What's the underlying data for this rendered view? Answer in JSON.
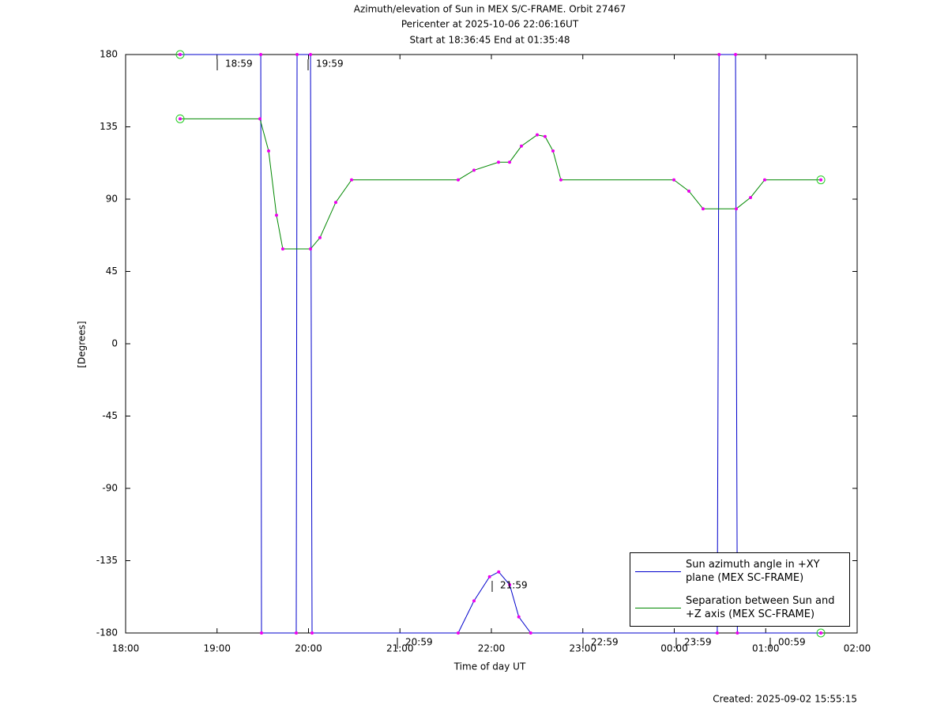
{
  "chart_data": {
    "type": "line",
    "title": "Azimuth/elevation of Sun in MEX S/C-FRAME.  Orbit 27467",
    "subtitle": [
      "Pericenter at 2025-10-06 22:06:16UT",
      "Start at 18:36:45 End at 01:35:48"
    ],
    "xlabel": "Time of day UT",
    "ylabel": "[Degrees]",
    "footer": "Created: 2025-09-02 15:55:15",
    "xlim": [
      18,
      26
    ],
    "xticks": [
      {
        "value": 18,
        "label": "18:00"
      },
      {
        "value": 19,
        "label": "19:00"
      },
      {
        "value": 20,
        "label": "20:00"
      },
      {
        "value": 21,
        "label": "21:00"
      },
      {
        "value": 22,
        "label": "22:00"
      },
      {
        "value": 23,
        "label": "23:00"
      },
      {
        "value": 24,
        "label": "00:00"
      },
      {
        "value": 25,
        "label": "01:00"
      },
      {
        "value": 26,
        "label": "02:00"
      }
    ],
    "ylim": [
      -180,
      180
    ],
    "yticks": [
      180,
      135,
      90,
      45,
      0,
      -45,
      -90,
      -135,
      -180
    ],
    "annotations": [
      "18:59",
      "19:59",
      "21:59",
      "20:59",
      "22:59",
      "23:59",
      "00:59"
    ],
    "legend": "lower right",
    "series": [
      {
        "name": "Sun azimuth angle in +XY plane (MEX SC-FRAME)",
        "color": "#0000cc",
        "x": [
          18.596,
          19.478,
          19.486,
          19.866,
          19.875,
          20.022,
          20.039,
          21.637,
          21.81,
          21.98,
          22.08,
          22.2,
          22.3,
          22.43,
          24.47,
          24.49,
          24.67,
          24.69,
          25.603
        ],
        "values": [
          180,
          180,
          -180,
          -180,
          180,
          180,
          -180,
          -180,
          -160,
          -145,
          -142,
          -150,
          -170,
          -180,
          -180,
          180,
          180,
          -180,
          -180
        ]
      },
      {
        "name": "Separation between Sun and +Z axis (MEX SC-FRAME)",
        "color": "#008800",
        "x": [
          18.596,
          19.469,
          19.564,
          19.65,
          19.719,
          20.022,
          20.125,
          20.298,
          20.471,
          21.637,
          21.81,
          22.078,
          22.199,
          22.328,
          22.501,
          22.587,
          22.674,
          22.76,
          23.996,
          24.16,
          24.315,
          24.678,
          24.834,
          24.989,
          25.603
        ],
        "values": [
          140,
          140,
          120,
          80,
          59,
          59,
          66,
          88,
          102,
          102,
          108,
          113,
          113,
          123,
          130,
          129,
          120,
          102,
          102,
          95,
          84,
          84,
          91,
          102,
          102
        ]
      }
    ]
  }
}
